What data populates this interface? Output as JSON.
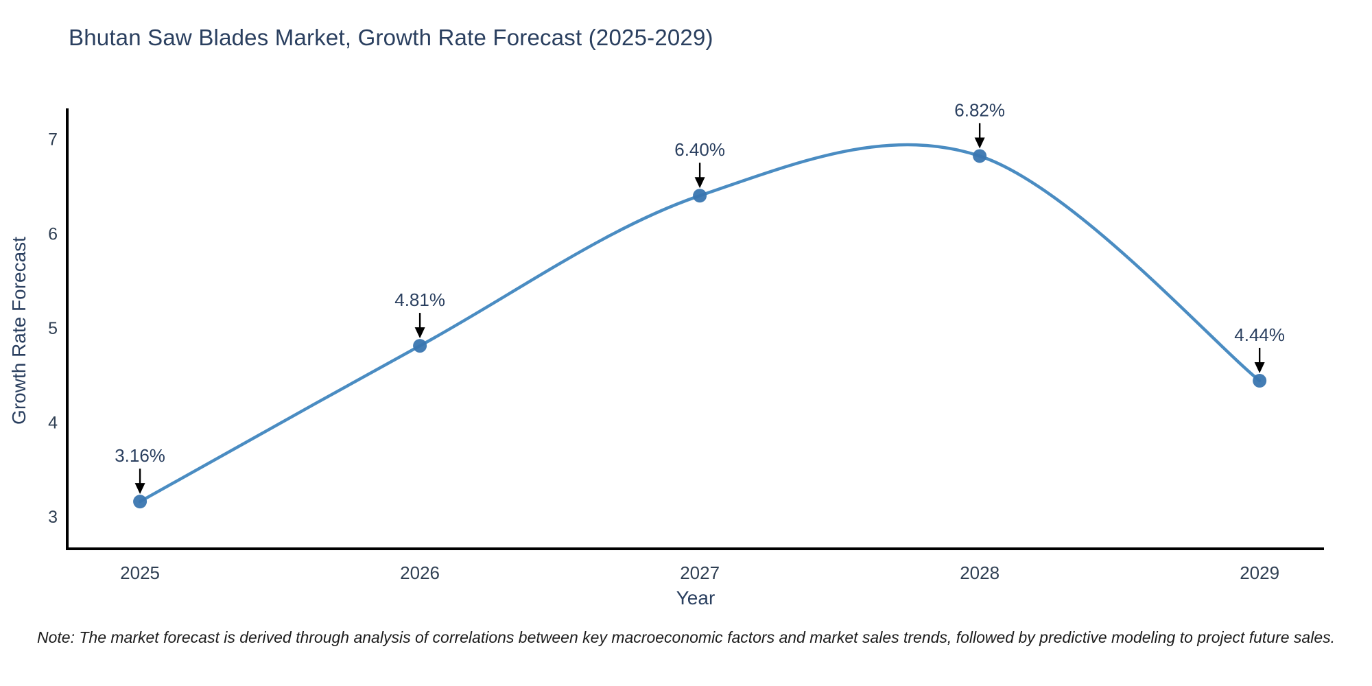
{
  "chart_data": {
    "type": "line",
    "title": "Bhutan Saw Blades Market, Growth Rate Forecast (2025-2029)",
    "xlabel": "Year",
    "ylabel": "Growth Rate Forecast",
    "x": [
      2025,
      2026,
      2027,
      2028,
      2029
    ],
    "y": [
      3.16,
      4.81,
      6.4,
      6.82,
      4.44
    ],
    "point_labels": [
      "3.16%",
      "4.81%",
      "6.40%",
      "6.82%",
      "4.44%"
    ],
    "xticks": [
      "2025",
      "2026",
      "2027",
      "2028",
      "2029"
    ],
    "yticks": [
      "3",
      "4",
      "5",
      "6",
      "7"
    ],
    "xlim": [
      2024.74,
      2029.23
    ],
    "ylim": [
      2.66,
      7.31
    ],
    "grid": false,
    "legend": false,
    "line_shape": "spline",
    "annotation_style": "down-arrow",
    "colors": {
      "line": "#4a8cc2",
      "marker": "#3a76b0",
      "axis": "#000000",
      "arrow": "#000000",
      "title_text": "#2a3f5f",
      "tick_text": "#2f3f53",
      "annotation_text": "#2a3f5f"
    }
  },
  "note": "Note: The market forecast is derived through analysis of correlations between key macroeconomic factors and market sales trends, followed by predictive modeling to project future sales."
}
